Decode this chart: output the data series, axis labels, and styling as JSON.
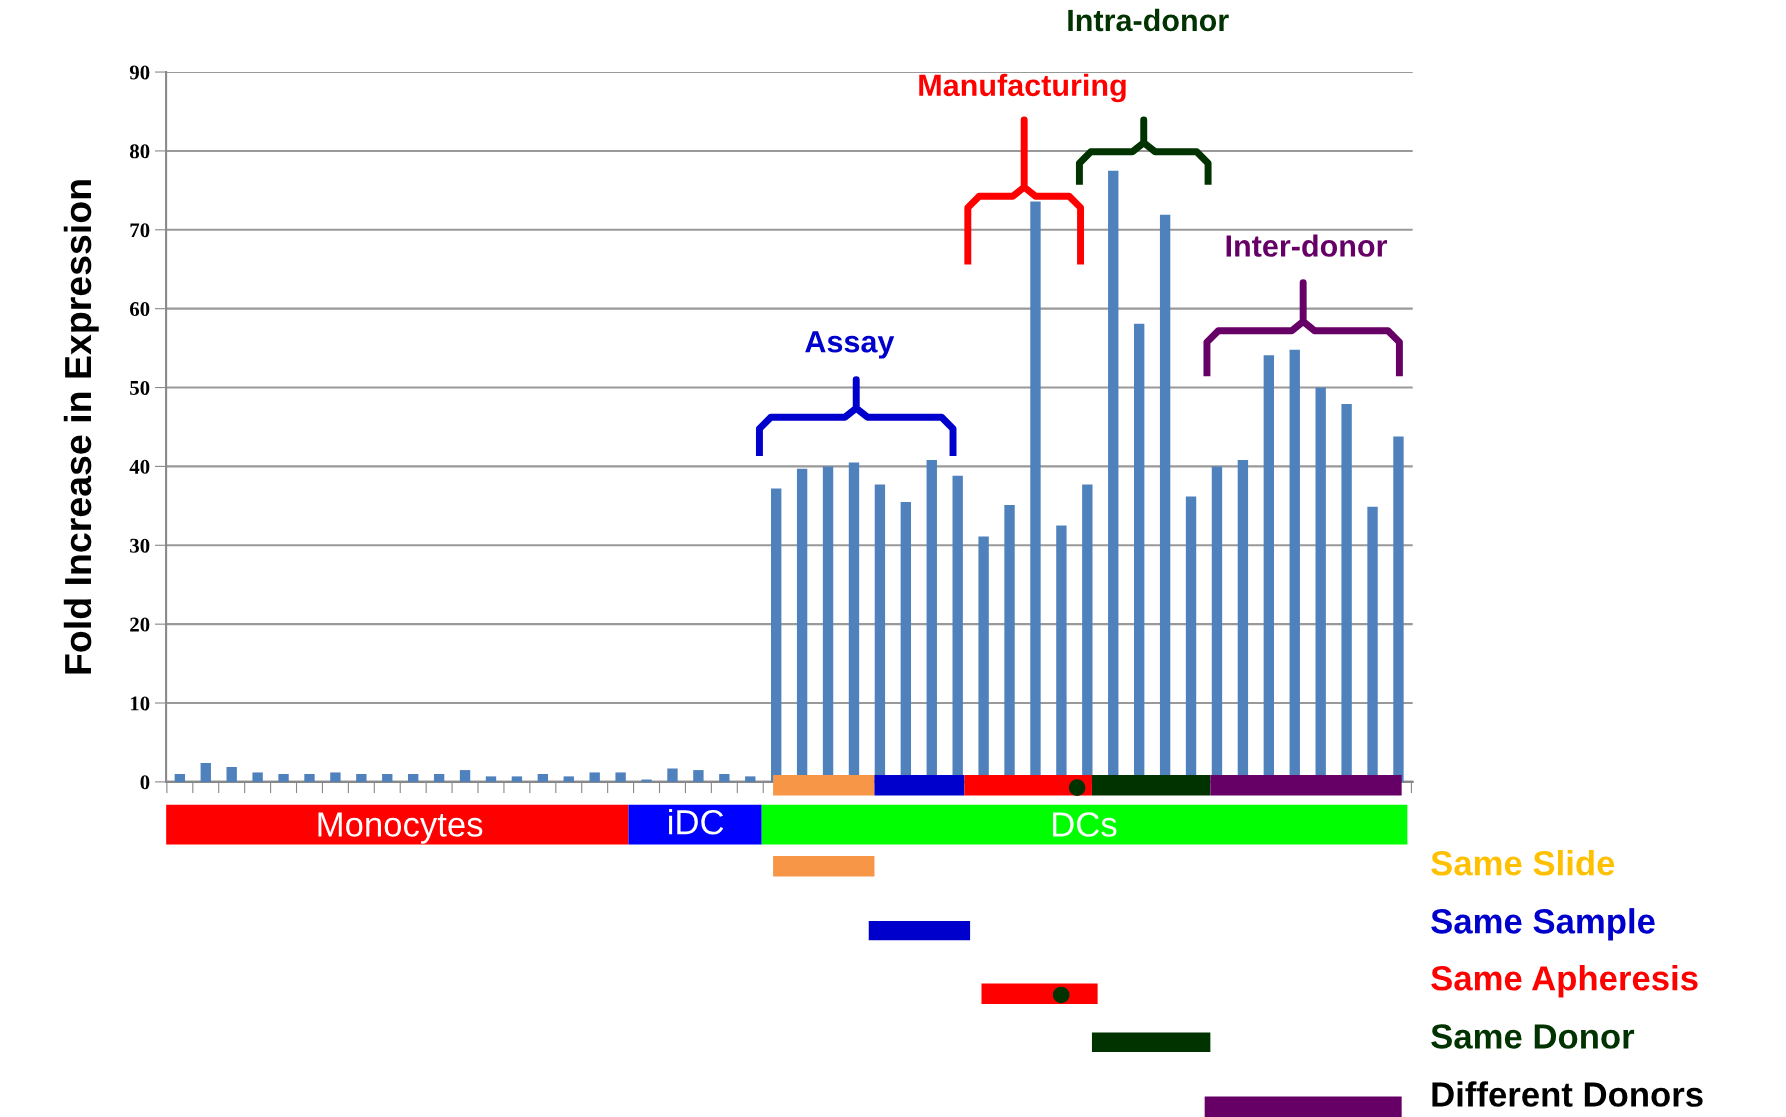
{
  "chart_data": {
    "type": "bar",
    "ylabel": "Fold Increase in Expression",
    "categories": [
      null,
      null,
      null,
      null,
      null,
      null,
      null,
      null,
      null,
      null,
      null,
      null,
      null,
      null,
      null,
      null,
      null,
      null,
      null,
      null,
      null,
      null,
      null,
      null,
      null,
      null,
      null,
      null,
      null,
      null,
      null,
      null,
      null,
      null,
      null,
      null,
      null,
      null,
      null,
      null,
      null,
      null,
      null,
      null,
      null,
      null,
      null,
      null
    ],
    "values": [
      1.0,
      2.4,
      1.9,
      1.2,
      1.0,
      1.0,
      1.2,
      1.0,
      1.0,
      1.0,
      1.0,
      1.5,
      0.7,
      0.7,
      1.0,
      0.7,
      1.2,
      1.2,
      0.3,
      1.7,
      1.5,
      1.0,
      0.7,
      37.2,
      39.7,
      40.0,
      40.5,
      37.7,
      35.5,
      40.8,
      38.8,
      31.1,
      35.1,
      73.6,
      32.5,
      37.7,
      77.5,
      58.1,
      71.9,
      36.2,
      40.0,
      40.8,
      54.1,
      54.8,
      50.0,
      47.9,
      34.9,
      43.8
    ],
    "color": "#4f81bd",
    "ylim": [
      0,
      90
    ],
    "yticks": [
      0,
      10,
      20,
      30,
      40,
      50,
      60,
      70,
      80,
      90
    ],
    "grid": "y",
    "annotations": [
      "Monocytes",
      "iDC",
      "DCs",
      "Assay",
      "Manufacturing",
      "Intra-donor",
      "Inter-donor",
      "Same Slide",
      "Same Sample",
      "Same Apheresis",
      "Same Donor",
      "Different Donors"
    ]
  }
}
